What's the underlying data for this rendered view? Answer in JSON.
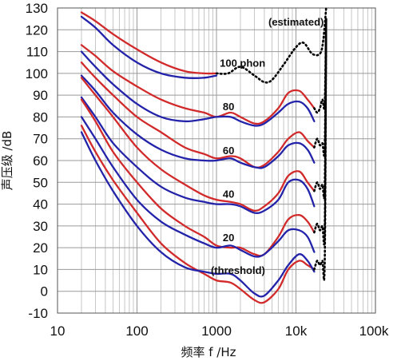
{
  "chart_data": {
    "type": "line",
    "title": "",
    "xlabel": "频率 f /Hz",
    "ylabel": "声压级 /dB",
    "xscale": "log",
    "xlim": [
      10,
      100000
    ],
    "ylim": [
      -10,
      130
    ],
    "xticks": [
      10,
      100,
      1000,
      10000,
      100000
    ],
    "xtick_labels": [
      "10",
      "100",
      "1000",
      "10k",
      "100k"
    ],
    "yticks": [
      -10,
      0,
      10,
      20,
      30,
      40,
      50,
      60,
      70,
      80,
      90,
      100,
      110,
      120,
      130
    ],
    "ytick_labels": [
      "-10",
      "0",
      "10",
      "20",
      "30",
      "40",
      "50",
      "60",
      "70",
      "80",
      "90",
      "100",
      "110",
      "120",
      "130"
    ],
    "grid": true,
    "annotations": [
      {
        "text": "(estimated)",
        "x": 4500,
        "y": 122
      },
      {
        "text": "100 phon",
        "x": 1100,
        "y": 103
      },
      {
        "text": "80",
        "x": 1200,
        "y": 83
      },
      {
        "text": "60",
        "x": 1200,
        "y": 63
      },
      {
        "text": "40",
        "x": 1200,
        "y": 43
      },
      {
        "text": "20",
        "x": 1200,
        "y": 23
      },
      {
        "text": "(threshold)",
        "x": 850,
        "y": 8
      }
    ],
    "colors": {
      "red": "#d22a2a",
      "blue": "#2323aa",
      "dotted": "#000000"
    },
    "series": [
      {
        "style": "red",
        "x": [
          20,
          30,
          50,
          100,
          200,
          400,
          700,
          1000
        ],
        "y": [
          128,
          124,
          118,
          111,
          105,
          101,
          100,
          100
        ]
      },
      {
        "style": "blue",
        "x": [
          20,
          30,
          50,
          100,
          200,
          400,
          700,
          1000
        ],
        "y": [
          126,
          121,
          113,
          105,
          100,
          98,
          98,
          99
        ]
      },
      {
        "style": "dotted",
        "x": [
          1000,
          1400,
          2000,
          3000,
          4000,
          5000,
          7000,
          10000,
          12500,
          16000,
          20000,
          22000,
          24000
        ],
        "y": [
          100,
          100,
          103,
          99,
          96,
          97,
          104,
          112,
          114,
          109,
          109,
          115,
          130
        ]
      },
      {
        "style": "red",
        "x": [
          20,
          30,
          50,
          100,
          200,
          400,
          700,
          1000,
          1500,
          2000,
          3000,
          4000,
          6000,
          8000,
          11000,
          14000,
          17000
        ],
        "y": [
          113,
          108,
          101,
          94,
          88,
          84,
          82,
          80,
          82,
          80,
          77,
          78,
          84,
          91,
          92,
          88,
          84
        ]
      },
      {
        "style": "blue",
        "x": [
          20,
          30,
          50,
          100,
          200,
          400,
          700,
          1000,
          1500,
          2000,
          3000,
          4000,
          6000,
          8000,
          11000,
          14000,
          17000
        ],
        "y": [
          110,
          103,
          95,
          86,
          80,
          78,
          79,
          80,
          80,
          78,
          76,
          77,
          82,
          86,
          87,
          84,
          78
        ]
      },
      {
        "style": "red",
        "x": [
          20,
          30,
          50,
          100,
          200,
          400,
          700,
          1000,
          1500,
          2000,
          3000,
          4000,
          6000,
          8000,
          11000,
          14000,
          17000
        ],
        "y": [
          105,
          98,
          90,
          80,
          73,
          66,
          63,
          61,
          62,
          61,
          57,
          58,
          64,
          70,
          73,
          69,
          66
        ]
      },
      {
        "style": "blue",
        "x": [
          20,
          30,
          50,
          100,
          200,
          400,
          700,
          1000,
          1500,
          2000,
          3000,
          4000,
          6000,
          8000,
          11000,
          14000,
          17000
        ],
        "y": [
          99,
          92,
          82,
          72,
          65,
          61,
          60,
          60,
          61,
          59,
          57,
          57,
          62,
          67,
          68,
          65,
          59
        ]
      },
      {
        "style": "red",
        "x": [
          20,
          30,
          50,
          100,
          200,
          400,
          700,
          1000,
          1500,
          2000,
          3000,
          4000,
          6000,
          8000,
          11000,
          14000,
          17000
        ],
        "y": [
          98,
          90,
          80,
          66,
          56,
          49,
          44,
          42,
          41,
          40,
          37,
          39,
          45,
          53,
          55,
          50,
          46
        ]
      },
      {
        "style": "blue",
        "x": [
          20,
          30,
          50,
          100,
          200,
          400,
          700,
          1000,
          1500,
          2000,
          3000,
          4000,
          6000,
          8000,
          11000,
          14000,
          17000
        ],
        "y": [
          89,
          80,
          68,
          57,
          48,
          43,
          41,
          40,
          40,
          39,
          36,
          37,
          42,
          50,
          51,
          47,
          39
        ]
      },
      {
        "style": "red",
        "x": [
          20,
          30,
          50,
          100,
          200,
          400,
          700,
          1000,
          1500,
          2000,
          3000,
          4000,
          6000,
          8000,
          11000,
          14000,
          17000
        ],
        "y": [
          88,
          78,
          64,
          50,
          38,
          30,
          25,
          21,
          20,
          20,
          17,
          17,
          25,
          33,
          35,
          32,
          27
        ]
      },
      {
        "style": "blue",
        "x": [
          20,
          30,
          50,
          100,
          200,
          400,
          700,
          1000,
          1500,
          2000,
          3000,
          4000,
          6000,
          8000,
          11000,
          14000,
          17000
        ],
        "y": [
          80,
          70,
          57,
          42,
          32,
          26,
          22,
          20,
          21,
          19,
          16,
          17,
          23,
          28,
          28,
          25,
          18
        ]
      },
      {
        "style": "red",
        "x": [
          20,
          30,
          50,
          100,
          200,
          400,
          700,
          1000,
          1500,
          2000,
          3000,
          4000,
          6000,
          8000,
          11000,
          14000,
          17000
        ],
        "y": [
          76,
          64,
          51,
          36,
          22,
          13,
          8,
          5,
          4,
          1,
          -4,
          -5,
          1,
          10,
          14,
          12,
          10
        ]
      },
      {
        "style": "blue",
        "x": [
          20,
          30,
          50,
          100,
          200,
          400,
          700,
          1000,
          1500,
          2000,
          3000,
          4000,
          6000,
          8000,
          11000,
          14000,
          17000
        ],
        "y": [
          73,
          60,
          46,
          30,
          18,
          11,
          9,
          8,
          8,
          5,
          -1,
          -2,
          5,
          12,
          17,
          14,
          9
        ]
      },
      {
        "style": "dotted",
        "x": [
          17000,
          18500,
          20000,
          21500,
          23000,
          24000
        ],
        "y": [
          84,
          82,
          84,
          88,
          86,
          125
        ]
      },
      {
        "style": "dotted",
        "x": [
          17000,
          18500,
          20000,
          21500,
          23000,
          24000
        ],
        "y": [
          66,
          70,
          67,
          68,
          66,
          125
        ]
      },
      {
        "style": "dotted",
        "x": [
          17000,
          18500,
          20000,
          21500,
          23000,
          24000
        ],
        "y": [
          46,
          50,
          47,
          49,
          48,
          125
        ]
      },
      {
        "style": "dotted",
        "x": [
          17000,
          18500,
          20000,
          21500,
          23000,
          24000
        ],
        "y": [
          27,
          31,
          28,
          30,
          28,
          125
        ]
      },
      {
        "style": "dotted",
        "x": [
          17000,
          18500,
          20000,
          21500,
          23000,
          24000
        ],
        "y": [
          10,
          14,
          12,
          14,
          13,
          125
        ]
      }
    ]
  }
}
